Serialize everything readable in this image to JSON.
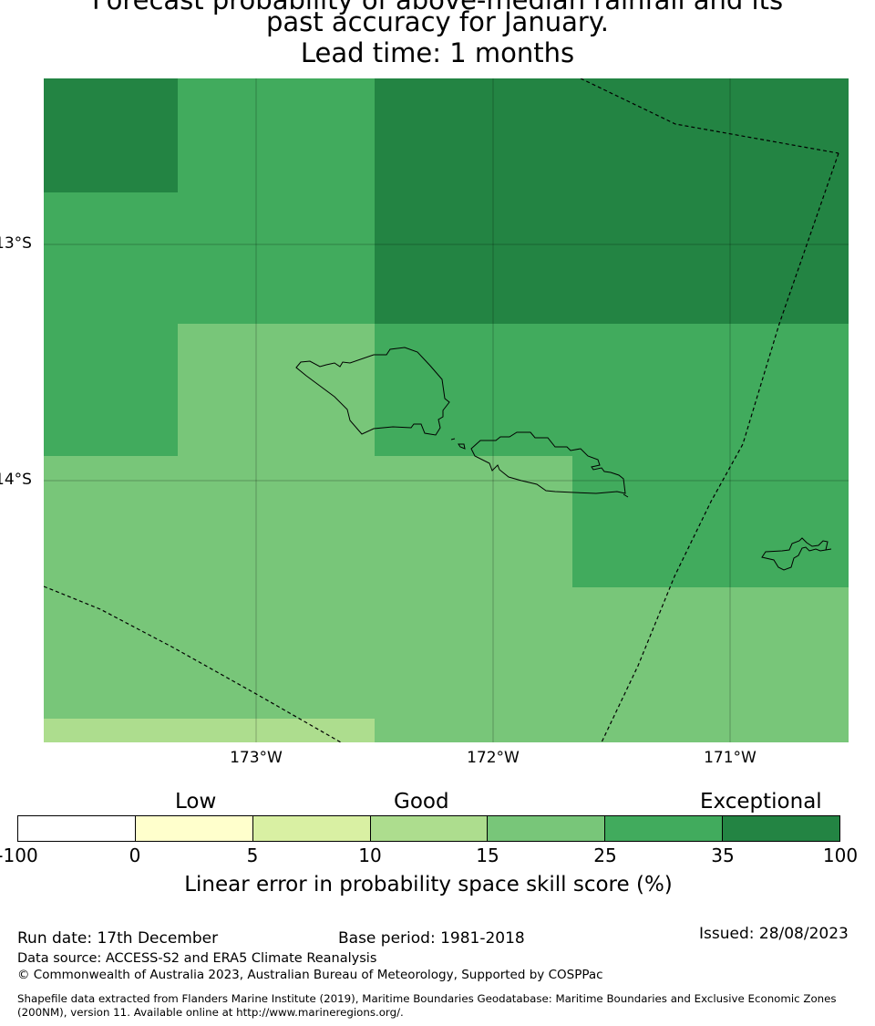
{
  "title": {
    "line1": "Forecast probability of above-median rainfall and its",
    "line2": "past accuracy for January.",
    "line3": "Lead time: 1 months"
  },
  "map": {
    "lat_labels": [
      "13°S",
      "14°S"
    ],
    "lon_labels": [
      "173°W",
      "172°W",
      "171°W"
    ],
    "skill_colors": {
      "c10_15": "#addd8e",
      "c15_25": "#78c679",
      "c25_35": "#41ab5d",
      "c35_100": "#238443"
    }
  },
  "legend": {
    "categories": [
      "Low",
      "Good",
      "Exceptional"
    ],
    "ticks": [
      "-100",
      "0",
      "5",
      "10",
      "15",
      "25",
      "35",
      "100"
    ],
    "segment_colors": [
      "#ffffff",
      "#ffffcc",
      "#d9f0a3",
      "#addd8e",
      "#78c679",
      "#41ab5d",
      "#238443"
    ],
    "title": "Linear error in probability space skill score (%)"
  },
  "footer": {
    "run_date": "Run date: 17th December",
    "base_period": "Base period: 1981-2018",
    "issued": "Issued: 28/08/2023",
    "data_source": "Data source: ACCESS-S2 and ERA5 Climate Reanalysis",
    "copyright": "© Commonwealth of Australia 2023, Australian Bureau of Meteorology, Supported by COSPPac",
    "shapefile_line1": "Shapefile data extracted from Flanders Marine Institute (2019), Maritime Boundaries Geodatabase: Maritime Boundaries and Exclusive Economic Zones",
    "shapefile_line2": "(200NM), version 11. Available online at http://www.marineregions.org/."
  }
}
